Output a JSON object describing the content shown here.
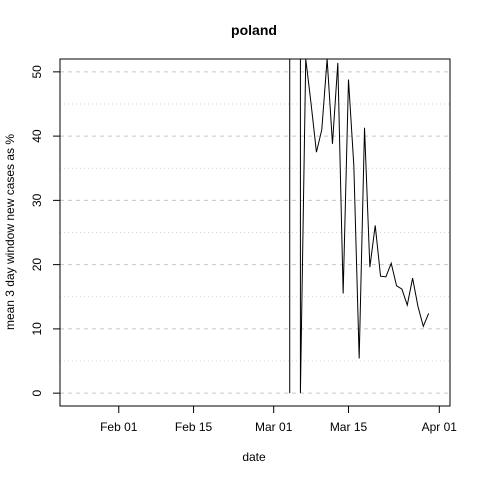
{
  "chart_data": {
    "type": "line",
    "title": "poland",
    "xlabel": "date",
    "ylabel": "mean  3  day window new cases as %",
    "x_ticks": [
      {
        "date": "2020-02-01",
        "label": "Feb 01"
      },
      {
        "date": "2020-02-15",
        "label": "Feb 15"
      },
      {
        "date": "2020-03-01",
        "label": "Mar 01"
      },
      {
        "date": "2020-03-15",
        "label": "Mar 15"
      },
      {
        "date": "2020-04-01",
        "label": "Apr 01"
      }
    ],
    "y_ticks": [
      0,
      10,
      20,
      30,
      40,
      50
    ],
    "xlim": [
      "2020-01-21",
      "2020-04-03"
    ],
    "ylim": [
      -2,
      52
    ],
    "grid": {
      "major_y": [
        0,
        10,
        20,
        30,
        40,
        50
      ],
      "minor_y": [
        5,
        15,
        25,
        35,
        45
      ],
      "style": "dashed-horizontal"
    },
    "series": [
      {
        "color": "#000000",
        "points": [
          {
            "x": "2020-03-04",
            "y": 0
          },
          {
            "x": "2020-03-04",
            "y": 52
          },
          {
            "x": "2020-03-06",
            "y": 52
          },
          {
            "x": "2020-03-06",
            "y": 0
          },
          {
            "x": "2020-03-07",
            "y": 52
          },
          {
            "x": "2020-03-08",
            "y": 45
          },
          {
            "x": "2020-03-09",
            "y": 37.5
          },
          {
            "x": "2020-03-10",
            "y": 41
          },
          {
            "x": "2020-03-11",
            "y": 52
          },
          {
            "x": "2020-03-12",
            "y": 38.8
          },
          {
            "x": "2020-03-13",
            "y": 51.4
          },
          {
            "x": "2020-03-14",
            "y": 15.5
          },
          {
            "x": "2020-03-15",
            "y": 48.8
          },
          {
            "x": "2020-03-16",
            "y": 35.4
          },
          {
            "x": "2020-03-17",
            "y": 5.4
          },
          {
            "x": "2020-03-18",
            "y": 41.3
          },
          {
            "x": "2020-03-19",
            "y": 19.6
          },
          {
            "x": "2020-03-20",
            "y": 26.1
          },
          {
            "x": "2020-03-21",
            "y": 18.2
          },
          {
            "x": "2020-03-22",
            "y": 18.1
          },
          {
            "x": "2020-03-23",
            "y": 20.2
          },
          {
            "x": "2020-03-24",
            "y": 16.7
          },
          {
            "x": "2020-03-25",
            "y": 16.2
          },
          {
            "x": "2020-03-26",
            "y": 13.7
          },
          {
            "x": "2020-03-27",
            "y": 17.9
          },
          {
            "x": "2020-03-28",
            "y": 13.5
          },
          {
            "x": "2020-03-29",
            "y": 10.4
          },
          {
            "x": "2020-03-30",
            "y": 12.4
          }
        ]
      }
    ]
  }
}
